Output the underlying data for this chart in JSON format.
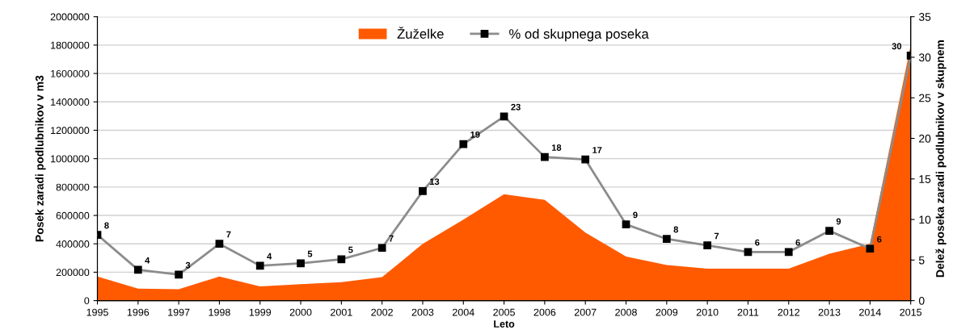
{
  "chart_data": {
    "type": "area",
    "xlabel": "Leto",
    "ylabel": "Posek zaradi podlubnikov v m3",
    "y2label": "Delež poseka zaradi podlubnikov v skupnem",
    "x": [
      1995,
      1996,
      1997,
      1998,
      1999,
      2000,
      2001,
      2002,
      2003,
      2004,
      2005,
      2006,
      2007,
      2008,
      2009,
      2010,
      2011,
      2012,
      2013,
      2014,
      2015
    ],
    "series": [
      {
        "name": "Žuželke",
        "color": "#ff5a00",
        "values": [
          170000,
          85000,
          80000,
          170000,
          100000,
          115000,
          130000,
          165000,
          400000,
          570000,
          750000,
          710000,
          480000,
          310000,
          250000,
          225000,
          225000,
          225000,
          330000,
          400000,
          1800000
        ]
      },
      {
        "name": "% od skupnega poseka",
        "type": "line",
        "axis": "y2",
        "color": "#8c8c8c",
        "marker": "square",
        "values": [
          8.1,
          3.8,
          3.2,
          7.0,
          4.3,
          4.6,
          5.1,
          6.5,
          13.5,
          19.3,
          22.7,
          17.7,
          17.4,
          9.4,
          7.6,
          6.8,
          6.0,
          6.0,
          8.6,
          6.4,
          30.2
        ],
        "value_labels": [
          "8",
          "4",
          "3",
          "7",
          "4",
          "5",
          "5",
          "7",
          "13",
          "19",
          "23",
          "18",
          "17",
          "9",
          "8",
          "7",
          "6",
          "6",
          "9",
          "6",
          "30"
        ]
      }
    ],
    "xlim": [
      1995,
      2015
    ],
    "xticks": [
      1995,
      1996,
      1997,
      1998,
      1999,
      2000,
      2001,
      2002,
      2003,
      2004,
      2005,
      2006,
      2007,
      2008,
      2009,
      2010,
      2011,
      2012,
      2013,
      2014,
      2015
    ],
    "ylim": [
      0,
      2000000
    ],
    "yticks": [
      0,
      200000,
      400000,
      600000,
      800000,
      1000000,
      1200000,
      1400000,
      1600000,
      1800000,
      2000000
    ],
    "y2lim": [
      0,
      35
    ],
    "y2ticks": [
      0,
      5,
      10,
      15,
      20,
      25,
      30,
      35
    ],
    "grid": "y",
    "legend": "top"
  }
}
